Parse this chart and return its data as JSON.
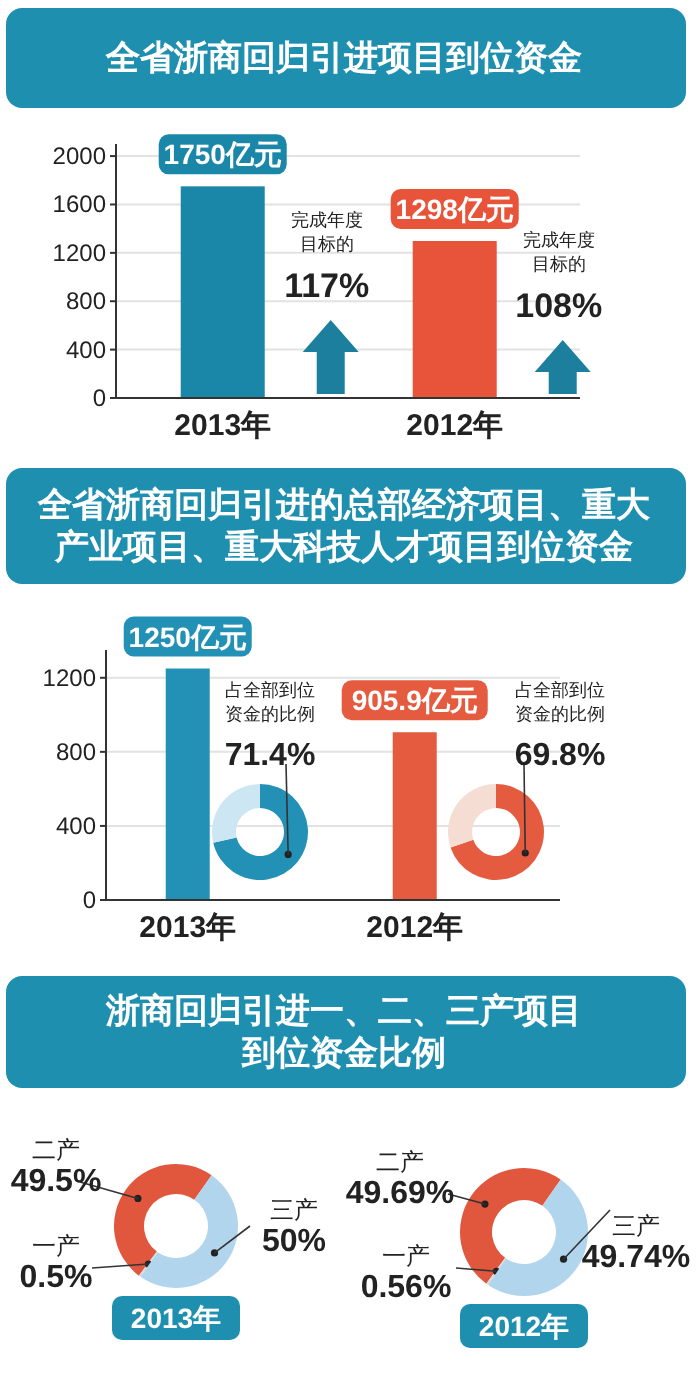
{
  "chart_data": [
    {
      "type": "bar",
      "title": "全省浙商回归引进项目到位资金",
      "categories": [
        "2013年",
        "2012年"
      ],
      "values": [
        1750,
        1298
      ],
      "colors": [
        "#1a87a8",
        "#e8543a"
      ],
      "value_labels": [
        "1750亿元",
        "1298亿元"
      ],
      "ylim": [
        0,
        2100
      ],
      "yticks": [
        0,
        400,
        800,
        1200,
        1600,
        2000
      ],
      "grid": "y",
      "annotations": [
        "完成年度目标的",
        "117%",
        "完成年度目标的",
        "108%"
      ]
    },
    {
      "type": "bar",
      "title": "全省浙商回归引进的总部经济项目、重大产业项目、重大科技人才项目到位资金",
      "categories": [
        "2013年",
        "2012年"
      ],
      "values": [
        1250,
        905.9
      ],
      "colors": [
        "#2390b5",
        "#e55b3f"
      ],
      "value_labels": [
        "1250亿元",
        "905.9亿元"
      ],
      "ylim": [
        0,
        1350
      ],
      "yticks": [
        0,
        400,
        800,
        1200
      ],
      "grid": "y"
    },
    {
      "type": "donut",
      "categories": [
        "占全部到位资金的比例",
        null
      ],
      "values": [
        71.4,
        28.6
      ],
      "colors": [
        "#2390b5",
        "#cde6f3"
      ],
      "value_labels": [
        "71.4%",
        null
      ]
    },
    {
      "type": "donut",
      "categories": [
        "占全部到位资金的比例",
        null
      ],
      "values": [
        69.8,
        30.2
      ],
      "colors": [
        "#e55b3f",
        "#f5ddd3"
      ],
      "value_labels": [
        "69.8%",
        null
      ]
    },
    {
      "type": "donut",
      "title": "浙商回归引进一、二、三产项目到位资金比例",
      "xlabel": "2013年",
      "categories": [
        "二产",
        "一产",
        "三产"
      ],
      "values": [
        49.5,
        0.5,
        50
      ],
      "colors": [
        "#e0573d",
        "#d9d9d9",
        "#b2d5ee"
      ],
      "value_labels": [
        "49.5%",
        "0.5%",
        "50%"
      ]
    },
    {
      "type": "donut",
      "xlabel": "2012年",
      "categories": [
        "二产",
        "一产",
        "三产"
      ],
      "values": [
        49.69,
        0.56,
        49.74
      ],
      "colors": [
        "#e0573d",
        "#d9d9d9",
        "#b2d5ee"
      ],
      "value_labels": [
        "49.69%",
        "0.56%",
        "49.74%"
      ]
    }
  ]
}
